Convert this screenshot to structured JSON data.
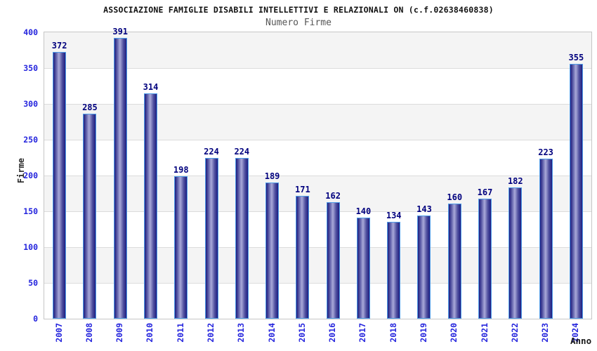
{
  "header": {
    "title": "ASSOCIAZIONE FAMIGLIE DISABILI INTELLETTIVI E RELAZIONALI ON (c.f.02638460838)",
    "subtitle": "Numero Firme"
  },
  "chart_data": {
    "type": "bar",
    "title": "ASSOCIAZIONE FAMIGLIE DISABILI INTELLETTIVI E RELAZIONALI ON (c.f.02638460838)",
    "subtitle": "Numero Firme",
    "categories": [
      "2007",
      "2008",
      "2009",
      "2010",
      "2011",
      "2012",
      "2013",
      "2014",
      "2015",
      "2016",
      "2017",
      "2018",
      "2019",
      "2020",
      "2021",
      "2022",
      "2023",
      "2024"
    ],
    "values": [
      372,
      285,
      391,
      314,
      198,
      224,
      224,
      189,
      171,
      162,
      140,
      134,
      143,
      160,
      167,
      182,
      223,
      355
    ],
    "xlabel": "Anno",
    "ylabel": "Firme",
    "ylim": [
      0,
      400
    ],
    "ytick_step": 50,
    "yticks": [
      0,
      50,
      100,
      150,
      200,
      250,
      300,
      350,
      400
    ],
    "grid": "horizontal-bands-alternating",
    "legend": "none",
    "colors": {
      "title": "#111111",
      "subtitle": "#565656",
      "bar_edge": "#4f9ce8",
      "bar_dark": "#1d1d80",
      "bar_mid": "#50509f",
      "bar_light": "#a9a9d9",
      "value_label": "#00007e",
      "axis_tick_label": "#2424dd",
      "axis_title": "#2a2a2a",
      "band_gray": "#f4f4f4",
      "band_white": "#ffffff",
      "gridline": "#dcdcdc",
      "plot_border": "#c6c6c6"
    }
  }
}
